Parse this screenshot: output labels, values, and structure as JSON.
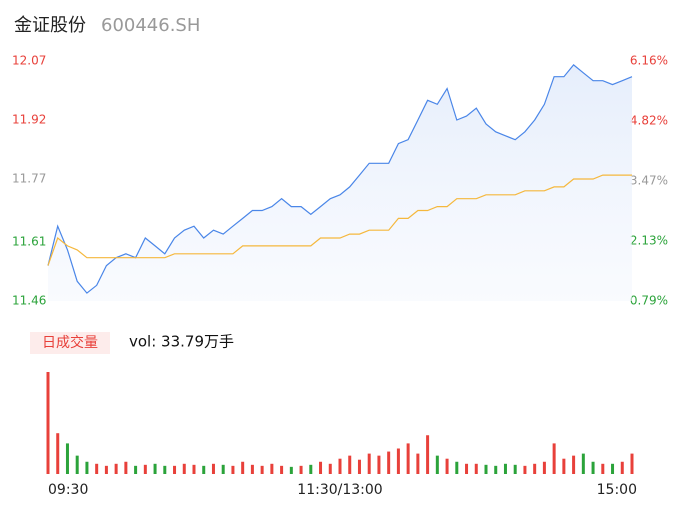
{
  "header": {
    "title": "金证股份",
    "code": "600446.SH"
  },
  "chart_data": [
    {
      "type": "line",
      "xlim": [
        0,
        240
      ],
      "xticks": [
        {
          "value": 0,
          "label": "09:30"
        },
        {
          "value": 120,
          "label": "11:30/13:00"
        },
        {
          "value": 240,
          "label": "15:00"
        }
      ],
      "ylim": [
        11.46,
        12.07
      ],
      "yticks": [
        11.46,
        11.61,
        11.77,
        11.92,
        12.07
      ],
      "y2lim": [
        0.79,
        6.16
      ],
      "y2ticks": [
        {
          "value": 0.79,
          "label": "0.79%"
        },
        {
          "value": 2.13,
          "label": "2.13%"
        },
        {
          "value": 3.47,
          "label": "3.47%"
        },
        {
          "value": 4.82,
          "label": "4.82%"
        },
        {
          "value": 6.16,
          "label": "6.16%"
        }
      ],
      "series": [
        {
          "name": "price",
          "color": "#4a86e8",
          "values": [
            11.55,
            11.65,
            11.59,
            11.51,
            11.48,
            11.5,
            11.55,
            11.57,
            11.58,
            11.57,
            11.62,
            11.6,
            11.58,
            11.62,
            11.64,
            11.65,
            11.62,
            11.64,
            11.63,
            11.65,
            11.67,
            11.69,
            11.69,
            11.7,
            11.72,
            11.7,
            11.7,
            11.68,
            11.7,
            11.72,
            11.73,
            11.75,
            11.78,
            11.81,
            11.81,
            11.81,
            11.86,
            11.87,
            11.92,
            11.97,
            11.96,
            12.0,
            11.92,
            11.93,
            11.95,
            11.91,
            11.89,
            11.88,
            11.87,
            11.89,
            11.92,
            11.96,
            12.03,
            12.03,
            12.06,
            12.04,
            12.02,
            12.02,
            12.01,
            12.02,
            12.03
          ]
        },
        {
          "name": "average",
          "color": "#f5b83d",
          "values": [
            11.55,
            11.62,
            11.6,
            11.59,
            11.57,
            11.57,
            11.57,
            11.57,
            11.57,
            11.57,
            11.57,
            11.57,
            11.57,
            11.58,
            11.58,
            11.58,
            11.58,
            11.58,
            11.58,
            11.58,
            11.6,
            11.6,
            11.6,
            11.6,
            11.6,
            11.6,
            11.6,
            11.6,
            11.62,
            11.62,
            11.62,
            11.63,
            11.63,
            11.64,
            11.64,
            11.64,
            11.67,
            11.67,
            11.69,
            11.69,
            11.7,
            11.7,
            11.72,
            11.72,
            11.72,
            11.73,
            11.73,
            11.73,
            11.73,
            11.74,
            11.74,
            11.74,
            11.75,
            11.75,
            11.77,
            11.77,
            11.77,
            11.78,
            11.78,
            11.78,
            11.78
          ]
        }
      ]
    },
    {
      "type": "bar",
      "legend": "日成交量",
      "volume_label": "vol: 33.79万手",
      "up_color": "#e8403a",
      "down_color": "#2ba33a",
      "values": [
        100,
        40,
        30,
        18,
        12,
        10,
        8,
        10,
        12,
        8,
        9,
        10,
        8,
        8,
        10,
        9,
        8,
        10,
        9,
        8,
        12,
        9,
        8,
        10,
        8,
        7,
        8,
        9,
        12,
        10,
        15,
        18,
        14,
        20,
        18,
        22,
        25,
        30,
        20,
        38,
        18,
        15,
        12,
        10,
        10,
        9,
        8,
        10,
        9,
        8,
        10,
        12,
        30,
        15,
        18,
        20,
        12,
        10,
        10,
        12,
        20
      ]
    }
  ]
}
